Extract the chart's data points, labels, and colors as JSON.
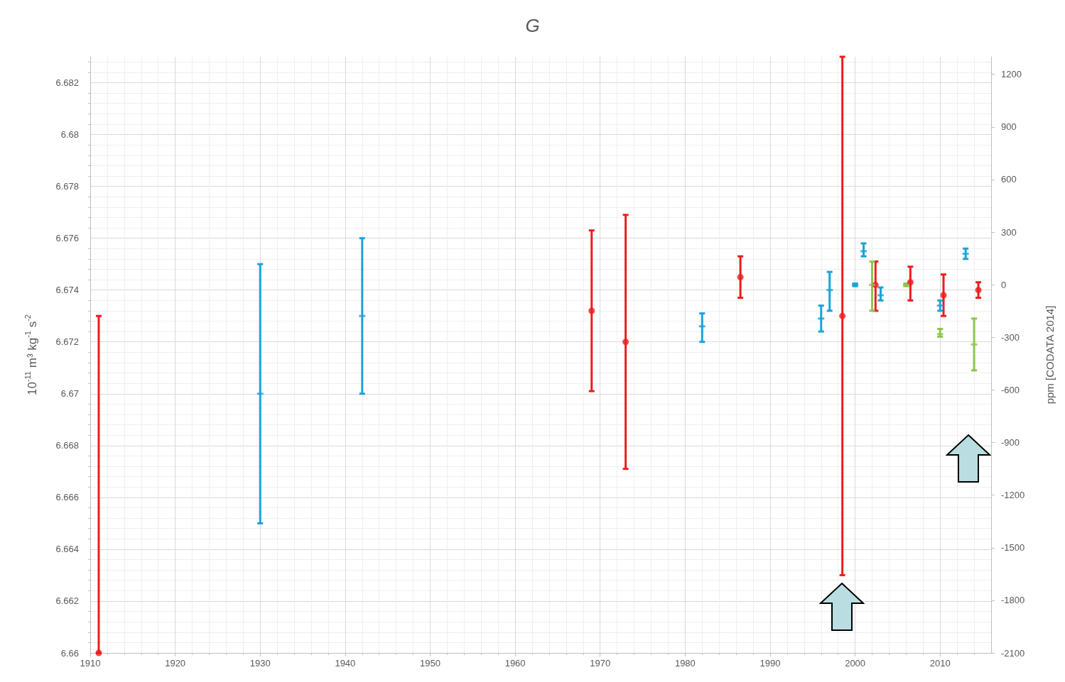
{
  "chart_data": {
    "type": "scatter",
    "title": "G",
    "ylabel": "10$^{-11}$ m³ kg$^{-1}$ s$^{-2}$",
    "y2label": "ppm [CODATA 2014]",
    "xlim": [
      1910,
      2016
    ],
    "xticks": [
      1910,
      1920,
      1930,
      1940,
      1950,
      1960,
      1970,
      1980,
      1990,
      2000,
      2010
    ],
    "ylim": [
      6.66,
      6.683
    ],
    "yticks": [
      6.66,
      6.662,
      6.664,
      6.666,
      6.668,
      6.67,
      6.672,
      6.674,
      6.676,
      6.678,
      6.68,
      6.682
    ],
    "y2lim": [
      -2100,
      1300
    ],
    "y2ticks": [
      -2100,
      -1800,
      -1500,
      -1200,
      -900,
      -600,
      -300,
      0,
      300,
      600,
      900,
      1200
    ],
    "grid": true,
    "series": [
      {
        "color": "#ee1c1c",
        "marker": "circle",
        "x": [
          1911,
          1969,
          1973,
          1986.5,
          1998.5,
          2002.4,
          2006.5,
          2010.4,
          2014.5
        ],
        "values": [
          6.66,
          6.6732,
          6.672,
          6.6745,
          6.673,
          6.6742,
          6.6743,
          6.6738,
          6.674
        ],
        "errors": [
          [
            6.66,
            6.673
          ],
          [
            6.6701,
            6.6763
          ],
          [
            6.6671,
            6.6769
          ],
          [
            6.6737,
            6.6753
          ],
          [
            6.663,
            6.683
          ],
          [
            6.6732,
            6.6751
          ],
          [
            6.6736,
            6.6749
          ],
          [
            6.673,
            6.6746
          ],
          [
            6.6737,
            6.6743
          ]
        ]
      },
      {
        "color": "#1aa3d9",
        "marker": "square",
        "x": [
          1930,
          1942,
          1982,
          1996,
          1997,
          2000,
          2001,
          2003,
          2010,
          2013
        ],
        "values": [
          6.67,
          6.673,
          6.6726,
          6.6729,
          6.674,
          6.6742,
          6.6755,
          6.6738,
          6.6734,
          6.6754
        ],
        "errors": [
          [
            6.665,
            6.675
          ],
          [
            6.67,
            6.676
          ],
          [
            6.672,
            6.6731
          ],
          [
            6.6724,
            6.6734
          ],
          [
            6.6732,
            6.6747
          ],
          [
            6.67415,
            6.67425
          ],
          [
            6.6753,
            6.6758
          ],
          [
            6.6736,
            6.6741
          ],
          [
            6.6732,
            6.6736
          ],
          [
            6.6752,
            6.6756
          ]
        ]
      },
      {
        "color": "#8fc350",
        "marker": "square",
        "x": [
          2002,
          2006,
          2010,
          2014
        ],
        "values": [
          6.6742,
          6.6742,
          6.6723,
          6.6719
        ],
        "errors": [
          [
            6.6732,
            6.6751
          ],
          [
            6.67415,
            6.67425
          ],
          [
            6.6722,
            6.6725
          ],
          [
            6.6709,
            6.6729
          ]
        ]
      }
    ]
  }
}
